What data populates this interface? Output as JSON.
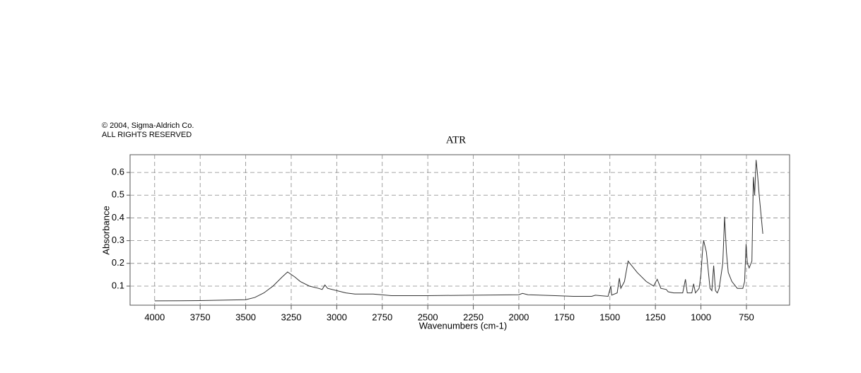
{
  "chart_data": {
    "type": "line",
    "title": "ATR",
    "annotations": [
      "© 2004, Sigma-Aldrich Co.",
      "ALL RIGHTS RESERVED"
    ],
    "x_label": "Wavenumbers (cm-1)",
    "y_label": "Absorbance",
    "color": "#333333",
    "grid": true,
    "xlim": [
      4135,
      513
    ],
    "ylim": [
      0.016,
      0.678
    ],
    "xticks": [
      4000,
      3750,
      3500,
      3250,
      3000,
      2750,
      2500,
      2250,
      2000,
      1750,
      1500,
      1250,
      1000,
      750
    ],
    "yticks": [
      0.1,
      0.2,
      0.3,
      0.4,
      0.5,
      0.6
    ],
    "x": [
      4000,
      3750,
      3500,
      3450,
      3400,
      3350,
      3300,
      3270,
      3230,
      3200,
      3150,
      3100,
      3080,
      3065,
      3050,
      3000,
      2950,
      2900,
      2800,
      2700,
      2500,
      2250,
      2000,
      1980,
      1950,
      1800,
      1700,
      1600,
      1580,
      1510,
      1495,
      1490,
      1460,
      1448,
      1440,
      1420,
      1400,
      1380,
      1350,
      1300,
      1260,
      1240,
      1220,
      1190,
      1180,
      1150,
      1100,
      1085,
      1075,
      1050,
      1040,
      1030,
      1010,
      1000,
      990,
      985,
      970,
      960,
      950,
      940,
      930,
      920,
      910,
      900,
      880,
      870,
      860,
      850,
      830,
      800,
      770,
      760,
      752,
      745,
      735,
      720,
      712,
      705,
      697,
      690,
      680,
      660
    ],
    "values": [
      0.035,
      0.036,
      0.04,
      0.05,
      0.07,
      0.1,
      0.14,
      0.162,
      0.14,
      0.12,
      0.1,
      0.09,
      0.085,
      0.105,
      0.09,
      0.08,
      0.07,
      0.065,
      0.065,
      0.058,
      0.058,
      0.06,
      0.062,
      0.068,
      0.062,
      0.058,
      0.055,
      0.055,
      0.06,
      0.055,
      0.1,
      0.06,
      0.07,
      0.135,
      0.09,
      0.12,
      0.21,
      0.19,
      0.16,
      0.12,
      0.1,
      0.13,
      0.09,
      0.085,
      0.075,
      0.07,
      0.07,
      0.13,
      0.07,
      0.07,
      0.11,
      0.07,
      0.09,
      0.15,
      0.27,
      0.3,
      0.25,
      0.17,
      0.09,
      0.08,
      0.19,
      0.08,
      0.07,
      0.09,
      0.2,
      0.405,
      0.25,
      0.16,
      0.12,
      0.09,
      0.09,
      0.12,
      0.285,
      0.2,
      0.18,
      0.21,
      0.58,
      0.5,
      0.655,
      0.6,
      0.5,
      0.33
    ]
  }
}
